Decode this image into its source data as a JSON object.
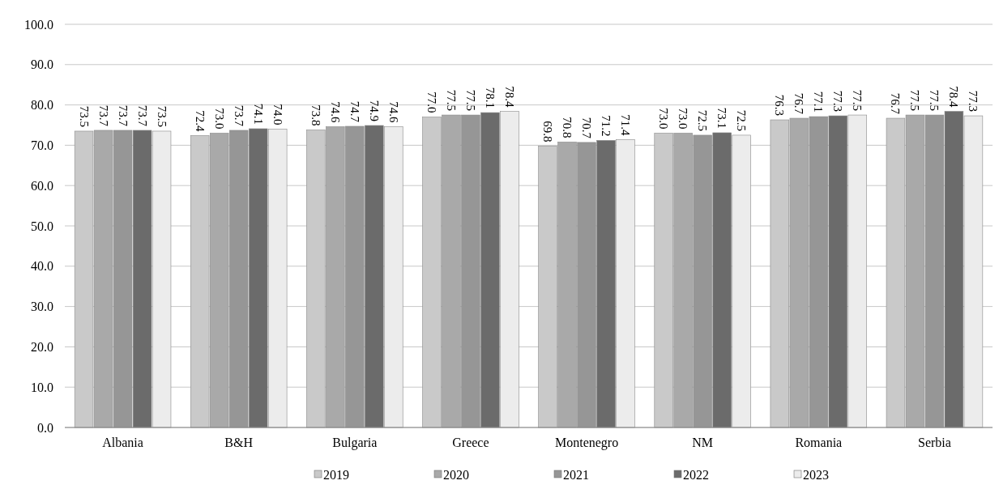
{
  "chart_data": {
    "type": "bar",
    "categories": [
      "Albania",
      "B&H",
      "Bulgaria",
      "Greece",
      "Montenegro",
      "NM",
      "Romania",
      "Serbia"
    ],
    "series": [
      {
        "name": "2019",
        "color": "#c9c9c9",
        "values": [
          73.5,
          72.4,
          73.8,
          77.0,
          69.8,
          73.0,
          76.3,
          76.7
        ],
        "value_labels": [
          "73.5",
          "72.4",
          "73.8",
          "77.0",
          "69.8",
          "73.0",
          "76.3",
          "76.7"
        ]
      },
      {
        "name": "2020",
        "color": "#a9a9a9",
        "values": [
          73.7,
          73.0,
          74.6,
          77.5,
          70.8,
          73.0,
          76.7,
          77.5
        ],
        "value_labels": [
          "73.7",
          "73.0",
          "74.6",
          "77.5",
          "70.8",
          "73.0",
          "76.7",
          "77.5"
        ]
      },
      {
        "name": "2021",
        "color": "#969696",
        "values": [
          73.7,
          73.7,
          74.7,
          77.5,
          70.7,
          72.5,
          77.1,
          77.5
        ],
        "value_labels": [
          "73.7",
          "73.7",
          "74.7",
          "77.5",
          "70.7",
          "72.5",
          "77.1",
          "77.5"
        ]
      },
      {
        "name": "2022",
        "color": "#6b6b6b",
        "values": [
          73.7,
          74.1,
          74.9,
          78.1,
          71.2,
          73.1,
          77.3,
          78.4
        ],
        "value_labels": [
          "73.7",
          "74.1",
          "74.9",
          "78.1",
          "71.2",
          "73.1",
          "77.3",
          "78.4"
        ]
      },
      {
        "name": "2023",
        "color": "#ececec",
        "values": [
          73.5,
          74.0,
          74.6,
          78.4,
          71.4,
          72.5,
          77.5,
          77.3
        ],
        "value_labels": [
          "73.5",
          "74.0",
          "74.6",
          "78.4",
          "71.4",
          "72.5",
          "77.5",
          "77.3"
        ]
      }
    ],
    "ylim": [
      0,
      100
    ],
    "yticks": [
      {
        "value": 0,
        "label": "0.0"
      },
      {
        "value": 10,
        "label": "10.0"
      },
      {
        "value": 20,
        "label": "20.0"
      },
      {
        "value": 30,
        "label": "30.0"
      },
      {
        "value": 40,
        "label": "40.0"
      },
      {
        "value": 50,
        "label": "50.0"
      },
      {
        "value": 60,
        "label": "60.0"
      },
      {
        "value": 70,
        "label": "70.0"
      },
      {
        "value": 80,
        "label": "80.0"
      },
      {
        "value": 90,
        "label": "90.0"
      },
      {
        "value": 100,
        "label": "100.0"
      }
    ],
    "grid": "y",
    "legend": "bottom"
  }
}
